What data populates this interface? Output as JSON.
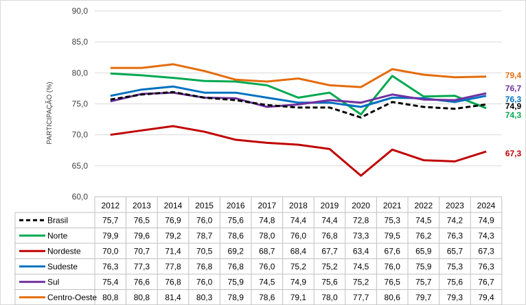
{
  "chart_data": {
    "type": "line",
    "title": "",
    "ylabel": "PARTICIPAÇÃO (%)",
    "xlabel": "",
    "ylim": [
      60,
      90
    ],
    "yticks": [
      "90,0",
      "85,0",
      "80,0",
      "75,0",
      "70,0",
      "65,0",
      "60,0"
    ],
    "categories": [
      "2012",
      "2013",
      "2014",
      "2015",
      "2016",
      "2017",
      "2018",
      "2019",
      "2020",
      "2021",
      "2022",
      "2023",
      "2024"
    ],
    "grid": true,
    "legend": "table-below",
    "series": [
      {
        "name": "Brasil",
        "color": "#000000",
        "dash": true,
        "values": [
          75.7,
          76.5,
          76.9,
          76.0,
          75.6,
          74.8,
          74.4,
          74.4,
          72.8,
          75.3,
          74.5,
          74.2,
          74.9
        ],
        "labels": [
          "75,7",
          "76,5",
          "76,9",
          "76,0",
          "75,6",
          "74,8",
          "74,4",
          "74,4",
          "72,8",
          "75,3",
          "74,5",
          "74,2",
          "74,9"
        ],
        "end_label": "74,9"
      },
      {
        "name": "Norte",
        "color": "#00A84F",
        "dash": false,
        "values": [
          79.9,
          79.6,
          79.2,
          78.7,
          78.6,
          78.0,
          76.0,
          76.8,
          73.3,
          79.5,
          76.2,
          76.3,
          74.3
        ],
        "labels": [
          "79,9",
          "79,6",
          "79,2",
          "78,7",
          "78,6",
          "78,0",
          "76,0",
          "76,8",
          "73,3",
          "79,5",
          "76,2",
          "76,3",
          "74,3"
        ],
        "end_label": "74,3"
      },
      {
        "name": "Nordeste",
        "color": "#C00000",
        "dash": false,
        "values": [
          70.0,
          70.7,
          71.4,
          70.5,
          69.2,
          68.7,
          68.4,
          67.7,
          63.4,
          67.6,
          65.9,
          65.7,
          67.3
        ],
        "labels": [
          "70,0",
          "70,7",
          "71,4",
          "70,5",
          "69,2",
          "68,7",
          "68,4",
          "67,7",
          "63,4",
          "67,6",
          "65,9",
          "65,7",
          "67,3"
        ],
        "end_label": "67,3"
      },
      {
        "name": "Sudeste",
        "color": "#0070C0",
        "dash": false,
        "values": [
          76.3,
          77.3,
          77.8,
          76.8,
          76.8,
          76.0,
          75.2,
          75.2,
          74.5,
          76.0,
          75.9,
          75.3,
          76.3
        ],
        "labels": [
          "76,3",
          "77,3",
          "77,8",
          "76,8",
          "76,8",
          "76,0",
          "75,2",
          "75,2",
          "74,5",
          "76,0",
          "75,9",
          "75,3",
          "76,3"
        ],
        "end_label": "76,3"
      },
      {
        "name": "Sul",
        "color": "#7030A0",
        "dash": false,
        "values": [
          75.4,
          76.6,
          76.8,
          76.0,
          75.9,
          74.5,
          74.9,
          75.6,
          75.2,
          76.5,
          75.7,
          75.6,
          76.7
        ],
        "labels": [
          "75,4",
          "76,6",
          "76,8",
          "76,0",
          "75,9",
          "74,5",
          "74,9",
          "75,6",
          "75,2",
          "76,5",
          "75,7",
          "75,6",
          "76,7"
        ],
        "end_label": "76,7"
      },
      {
        "name": "Centro-Oeste",
        "color": "#E46C0A",
        "dash": false,
        "values": [
          80.8,
          80.8,
          81.4,
          80.3,
          78.9,
          78.6,
          79.1,
          78.0,
          77.7,
          80.6,
          79.7,
          79.3,
          79.4
        ],
        "labels": [
          "80,8",
          "80,8",
          "81,4",
          "80,3",
          "78,9",
          "78,6",
          "79,1",
          "78,0",
          "77,7",
          "80,6",
          "79,7",
          "79,3",
          "79,4"
        ],
        "end_label": "79,4"
      }
    ]
  }
}
